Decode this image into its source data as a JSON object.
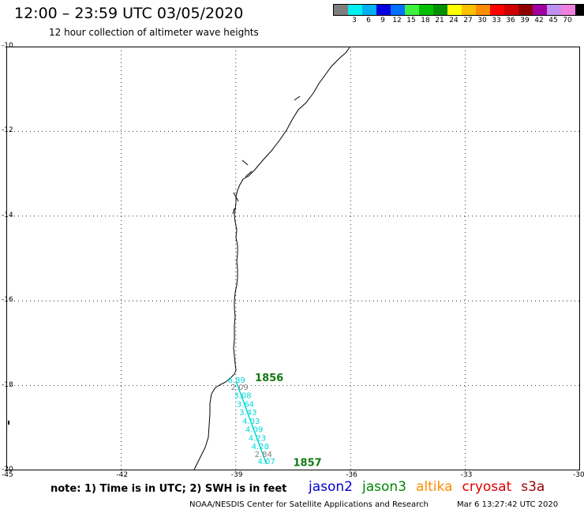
{
  "header": {
    "title": "12:00 – 23:59 UTC 03/05/2020",
    "subtitle": "12 hour collection of altimeter wave heights"
  },
  "legend": {
    "unit": "(ft)",
    "swatches": [
      {
        "label": "",
        "color": "#7f7f7f"
      },
      {
        "label": "3",
        "color": "#00f0f0"
      },
      {
        "label": "6",
        "color": "#00b0f0"
      },
      {
        "label": "9",
        "color": "#0000e0"
      },
      {
        "label": "12",
        "color": "#0070ff"
      },
      {
        "label": "15",
        "color": "#40f040"
      },
      {
        "label": "18",
        "color": "#00c000"
      },
      {
        "label": "21",
        "color": "#009000"
      },
      {
        "label": "24",
        "color": "#ffff00"
      },
      {
        "label": "27",
        "color": "#ffc000"
      },
      {
        "label": "30",
        "color": "#ff8c00"
      },
      {
        "label": "33",
        "color": "#ff0000"
      },
      {
        "label": "36",
        "color": "#d00000"
      },
      {
        "label": "39",
        "color": "#900000"
      },
      {
        "label": "42",
        "color": "#a000a0"
      },
      {
        "label": "45",
        "color": "#c090f0"
      },
      {
        "label": "70",
        "color": "#f080e0"
      },
      {
        "label": "",
        "color": "#000000"
      }
    ]
  },
  "map": {
    "lat_labels": [
      "-10",
      "-12",
      "-14",
      "-16",
      "-18",
      "-20"
    ],
    "lon_labels": [
      "-45",
      "-42",
      "-39",
      "-36",
      "-33",
      "-30"
    ],
    "lon_range": [
      -45,
      -30
    ],
    "lat_range": [
      -10,
      -20
    ],
    "grid": "dotted",
    "passes": [
      {
        "label": "1856",
        "lon": -38.5,
        "lat": -17.9
      },
      {
        "label": "1857",
        "lon": -37.5,
        "lat": -19.9
      }
    ],
    "track_color": "#00d8d8",
    "measurements": [
      {
        "value": "6.89",
        "lon": -38.98,
        "lat": -17.93,
        "color": "#00d8d8"
      },
      {
        "value": "2.09",
        "lon": -38.9,
        "lat": -18.1,
        "color": "#7f7f7f"
      },
      {
        "value": "3.08",
        "lon": -38.82,
        "lat": -18.3,
        "color": "#00d8d8"
      },
      {
        "value": "3.64",
        "lon": -38.75,
        "lat": -18.5,
        "color": "#00d8d8"
      },
      {
        "value": "3.43",
        "lon": -38.68,
        "lat": -18.7,
        "color": "#00d8d8"
      },
      {
        "value": "4.03",
        "lon": -38.6,
        "lat": -18.9,
        "color": "#00d8d8"
      },
      {
        "value": "4.09",
        "lon": -38.52,
        "lat": -19.1,
        "color": "#00d8d8"
      },
      {
        "value": "4.23",
        "lon": -38.44,
        "lat": -19.3,
        "color": "#00d8d8"
      },
      {
        "value": "4.28",
        "lon": -38.36,
        "lat": -19.5,
        "color": "#00d8d8"
      },
      {
        "value": "2.84",
        "lon": -38.28,
        "lat": -19.68,
        "color": "#7f7f7f"
      },
      {
        "value": "4.07",
        "lon": -38.2,
        "lat": -19.85,
        "color": "#00d8d8"
      }
    ]
  },
  "footer": {
    "note": "note:  1) Time is in UTC;  2) SWH is in feet",
    "satellites": [
      {
        "name": "jason2",
        "color": "#0000cc"
      },
      {
        "name": "jason3",
        "color": "#008800"
      },
      {
        "name": "altika",
        "color": "#ff8c00"
      },
      {
        "name": "cryosat",
        "color": "#dd0000"
      },
      {
        "name": "s3a",
        "color": "#990000"
      }
    ],
    "credit": "NOAA/NESDIS Center for Satellite Applications and Research",
    "timestamp": "Mar  6 13:27:42 UTC 2020"
  }
}
